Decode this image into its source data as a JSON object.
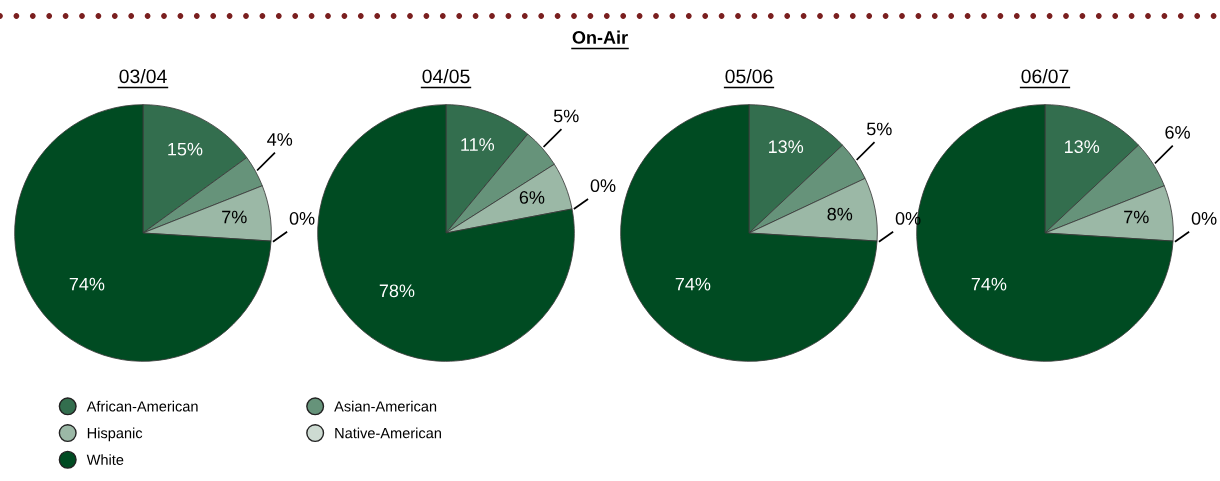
{
  "chart_data": [
    {
      "type": "pie",
      "title": "03/04",
      "annotations": [
        "On-Air"
      ],
      "legend": "bottom right",
      "categories": [
        "African-American",
        "Asian-American",
        "Hispanic",
        "Native-American",
        "White"
      ],
      "values": [
        15,
        4,
        7,
        0,
        74
      ],
      "colors": [
        "#336e4e",
        "#66937a",
        "#9bb8a6",
        "#cddbd2",
        "#004b22"
      ],
      "value_labels": [
        "15%",
        "4%",
        "7%",
        "0%",
        "74%"
      ]
    },
    {
      "type": "pie",
      "title": "04/05",
      "values": [
        11,
        5,
        6,
        0,
        78
      ],
      "colors": [
        "#336e4e",
        "#66937a",
        "#9bb8a6",
        "#cddbd2",
        "#004b22"
      ],
      "value_labels": [
        "11%",
        "5%",
        "6%",
        "0%",
        "78%"
      ]
    },
    {
      "type": "pie",
      "title": "05/06",
      "values": [
        13,
        5,
        8,
        0,
        74
      ],
      "colors": [
        "#336e4e",
        "#66937a",
        "#9bb8a6",
        "#cddbd2",
        "#004b22"
      ],
      "value_labels": [
        "13%",
        "5%",
        "8%",
        "0%",
        "74%"
      ]
    },
    {
      "type": "pie",
      "title": "06/07",
      "values": [
        13,
        6,
        7,
        0,
        74
      ],
      "colors": [
        "#336e4e",
        "#66937a",
        "#9bb8a6",
        "#cddbd2",
        "#004b22"
      ],
      "value_labels": [
        "13%",
        "6%",
        "7%",
        "0%",
        "74%"
      ]
    }
  ]
}
